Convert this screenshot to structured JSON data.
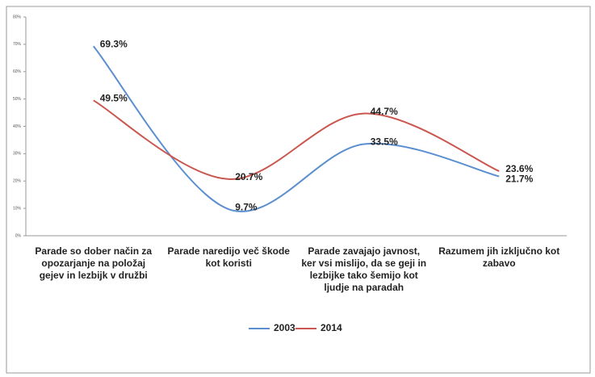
{
  "chart_data": {
    "type": "line",
    "categories": [
      "Parade so dober način za opozarjanje na položaj gejev in lezbijk v družbi",
      "Parade naredijo več škode kot koristi",
      "Parade zavajajo javnost, ker vsi mislijo, da se geji in lezbijke tako šemijo kot ljudje na paradah",
      "Razumem jih izključno kot zabavo"
    ],
    "series": [
      {
        "name": "2003",
        "color": "#5b8fd0",
        "values": [
          69.3,
          9.7,
          33.5,
          21.7
        ],
        "value_labels": [
          "69.3%",
          "9.7%",
          "33.5%",
          "21.7%"
        ]
      },
      {
        "name": "2014",
        "color": "#c9574f",
        "values": [
          49.5,
          20.7,
          44.7,
          23.6
        ],
        "value_labels": [
          "49.5%",
          "20.7%",
          "44.7%",
          "23.6%"
        ]
      }
    ],
    "ylim": [
      0,
      80
    ],
    "yticks": [
      {
        "value": 0,
        "label": "0%"
      },
      {
        "value": 10,
        "label": "10%"
      },
      {
        "value": 20,
        "label": "20%"
      },
      {
        "value": 30,
        "label": "30%"
      },
      {
        "value": 40,
        "label": "40%"
      },
      {
        "value": 50,
        "label": "50%"
      },
      {
        "value": 60,
        "label": "60%"
      },
      {
        "value": 70,
        "label": "70%"
      },
      {
        "value": 80,
        "label": "80%"
      }
    ],
    "grid": false,
    "smooth": true,
    "legend": "bottom"
  }
}
